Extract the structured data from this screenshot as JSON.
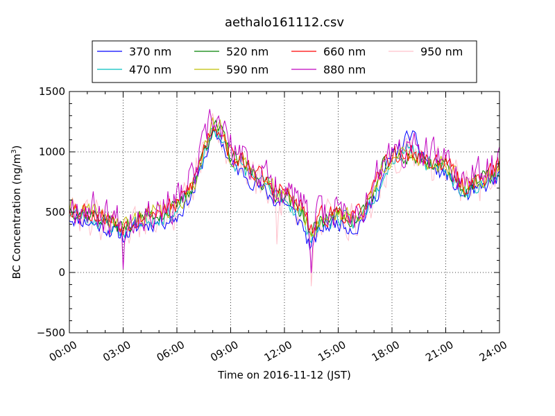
{
  "chart_data": {
    "type": "line",
    "title": "aethalo161112.csv",
    "xlabel": "Time on 2016-11-12 (JST)",
    "ylabel_main": "BC Concentration (ng/m",
    "ylabel_sup": "3",
    "ylabel_end": ")",
    "xlim": [
      0,
      24
    ],
    "ylim": [
      -500,
      1500
    ],
    "grid": true,
    "legend_position": "top-center, outside plot",
    "x_tick_values": [
      0,
      3,
      6,
      9,
      12,
      15,
      18,
      21,
      24
    ],
    "x_tick_labels": [
      "00:00",
      "03:00",
      "06:00",
      "09:00",
      "12:00",
      "15:00",
      "18:00",
      "21:00",
      "24:00"
    ],
    "y_tick_values": [
      -500,
      0,
      500,
      1000,
      1500
    ],
    "y_tick_labels": [
      "−500",
      "0",
      "500",
      "1000",
      "1500"
    ],
    "series_anchors": {
      "x": [
        0,
        1,
        2,
        3,
        4,
        5,
        6,
        7,
        7.5,
        8,
        8.5,
        9,
        10,
        11,
        11.5,
        12,
        12.5,
        13,
        13.5,
        14,
        15,
        16,
        17,
        17.5,
        18,
        18.5,
        19,
        20,
        21,
        22,
        23,
        24
      ],
      "base": [
        520,
        480,
        430,
        360,
        450,
        480,
        520,
        750,
        1000,
        1200,
        1150,
        950,
        850,
        720,
        650,
        650,
        550,
        500,
        300,
        420,
        480,
        420,
        650,
        850,
        950,
        930,
        960,
        900,
        880,
        680,
        750,
        850
      ]
    },
    "series": [
      {
        "name": "370 nm",
        "color": "#0000ff",
        "offset": -60,
        "noise": 60,
        "seed": 11,
        "bumps": [
          {
            "x0": 17.5,
            "x1": 20.5,
            "amp": 250
          },
          {
            "x0": 12.5,
            "x1": 14,
            "amp": -60
          }
        ]
      },
      {
        "name": "470 nm",
        "color": "#00bfbf",
        "offset": -20,
        "noise": 60,
        "seed": 23,
        "bumps": [
          {
            "x0": 17.8,
            "x1": 20.2,
            "amp": 120
          }
        ]
      },
      {
        "name": "520 nm",
        "color": "#008000",
        "offset": 10,
        "noise": 65,
        "seed": 37,
        "bumps": []
      },
      {
        "name": "590 nm",
        "color": "#bfbf00",
        "offset": 20,
        "noise": 70,
        "seed": 41,
        "bumps": []
      },
      {
        "name": "660 nm",
        "color": "#ff0000",
        "offset": 30,
        "noise": 75,
        "seed": 53,
        "bumps": []
      },
      {
        "name": "880 nm",
        "color": "#bf00bf",
        "offset": 60,
        "noise": 140,
        "seed": 67,
        "bumps": [
          {
            "x0": 2.9,
            "x1": 3.1,
            "amp": -250
          },
          {
            "x0": 13.3,
            "x1": 13.6,
            "amp": -420
          }
        ]
      },
      {
        "name": "950 nm",
        "color": "#ffc0cb",
        "offset": 0,
        "noise": 150,
        "seed": 79,
        "bumps": [
          {
            "x0": 11.5,
            "x1": 11.7,
            "amp": -450
          },
          {
            "x0": 13.4,
            "x1": 13.6,
            "amp": -550
          }
        ]
      }
    ]
  }
}
